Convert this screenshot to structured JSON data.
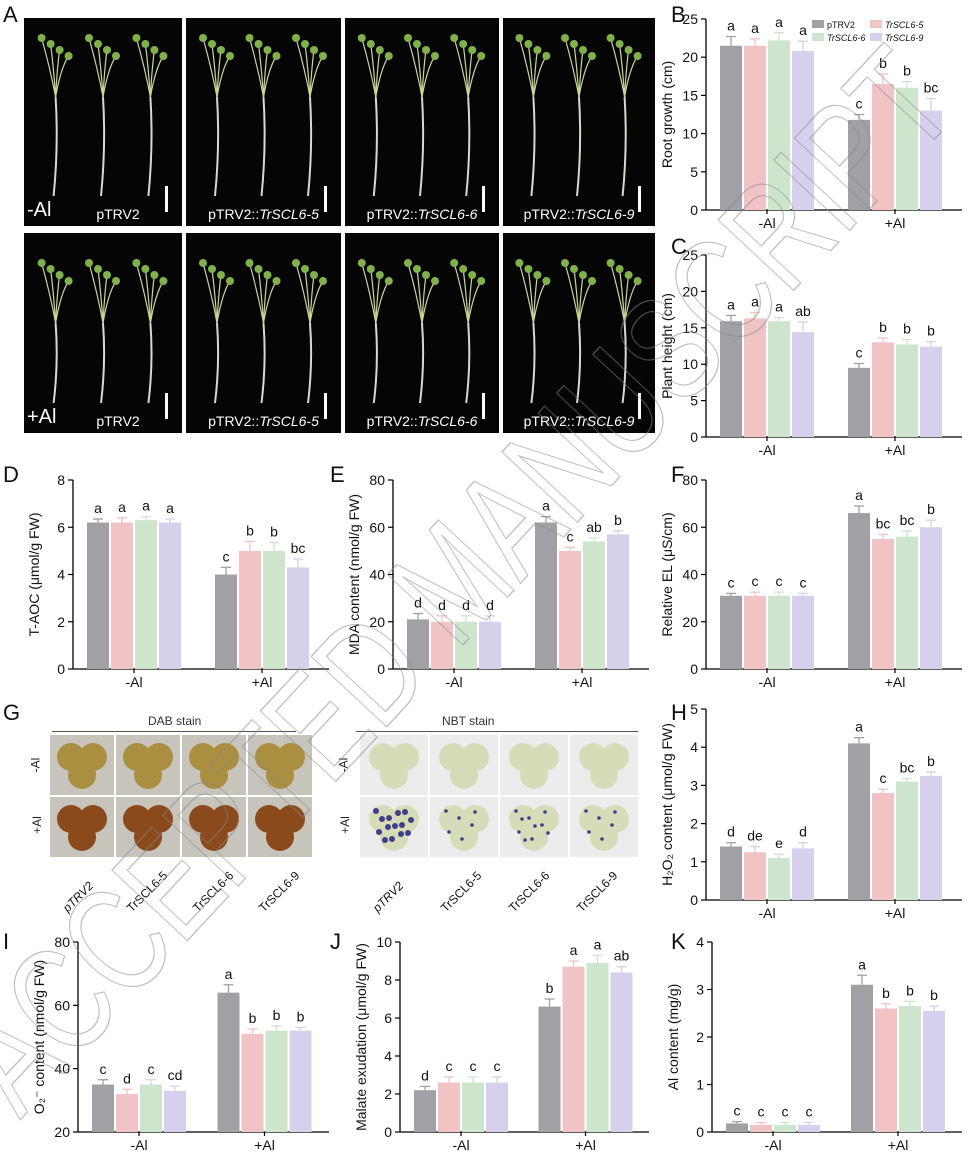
{
  "panel_letters": {
    "A": "A",
    "B": "B",
    "C": "C",
    "D": "D",
    "E": "E",
    "F": "F",
    "G": "G",
    "H": "H",
    "I": "I",
    "J": "J",
    "K": "K"
  },
  "photos": {
    "row1_condition": "-Al",
    "row2_condition": "+Al",
    "captions": [
      "pTRV2",
      "pTRV2::",
      "pTRV2::",
      "pTRV2::"
    ],
    "caption_genes": [
      "",
      "TrSCL6-5",
      "TrSCL6-6",
      "TrSCL6-9"
    ]
  },
  "stain": {
    "dab_title": "DAB stain",
    "nbt_title": "NBT stain",
    "minus": "-Al",
    "plus": "+Al",
    "genotypes": [
      "pTRV2",
      "TrSCL6-5",
      "TrSCL6-6",
      "TrSCL6-9"
    ]
  },
  "watermark": "ACCEPTED MANUSCRIPT",
  "colors": {
    "pTRV2": "#a0a0a5",
    "TrSCL6-5": "#f2c3c4",
    "TrSCL6-6": "#cde4cd",
    "TrSCL6-9": "#d6d0ec",
    "dab_leaf": "#a88c3a",
    "nbt_leaf": "#d7dcb8",
    "nbt_spot": "#3e3f86"
  },
  "chart_data": [
    {
      "id": "B",
      "type": "bar",
      "ylabel": "Root growth (cm)",
      "ylim": [
        0,
        25
      ],
      "yticks": [
        0,
        5,
        10,
        15,
        20,
        25
      ],
      "categories": [
        "-Al",
        "+Al"
      ],
      "legend": [
        "pTRV2",
        "TrSCL6-5",
        "TrSCL6-6",
        "TrSCL6-9"
      ],
      "series": [
        {
          "name": "pTRV2",
          "values": [
            21.5,
            11.8
          ],
          "errors": [
            1.2,
            0.7
          ],
          "letters": [
            "a",
            "c"
          ]
        },
        {
          "name": "TrSCL6-5",
          "values": [
            21.5,
            16.5
          ],
          "errors": [
            0.9,
            1.3
          ],
          "letters": [
            "a",
            "b"
          ]
        },
        {
          "name": "TrSCL6-6",
          "values": [
            22.2,
            16.0
          ],
          "errors": [
            1.0,
            0.8
          ],
          "letters": [
            "a",
            "b"
          ]
        },
        {
          "name": "TrSCL6-9",
          "values": [
            20.8,
            13.0
          ],
          "errors": [
            1.3,
            1.6
          ],
          "letters": [
            "a",
            "bc"
          ]
        }
      ]
    },
    {
      "id": "C",
      "type": "bar",
      "ylabel": "Plant height (cm)",
      "ylim": [
        0,
        25
      ],
      "yticks": [
        0,
        5,
        10,
        15,
        20,
        25
      ],
      "categories": [
        "-Al",
        "+Al"
      ],
      "series": [
        {
          "name": "pTRV2",
          "values": [
            15.9,
            9.5
          ],
          "errors": [
            0.8,
            0.6
          ],
          "letters": [
            "a",
            "c"
          ]
        },
        {
          "name": "TrSCL6-5",
          "values": [
            16.3,
            13.0
          ],
          "errors": [
            0.8,
            0.6
          ],
          "letters": [
            "a",
            "b"
          ]
        },
        {
          "name": "TrSCL6-6",
          "values": [
            15.9,
            12.7
          ],
          "errors": [
            0.5,
            0.7
          ],
          "letters": [
            "a",
            "b"
          ]
        },
        {
          "name": "TrSCL6-9",
          "values": [
            14.4,
            12.4
          ],
          "errors": [
            1.4,
            0.7
          ],
          "letters": [
            "ab",
            "b"
          ]
        }
      ]
    },
    {
      "id": "D",
      "type": "bar",
      "ylabel": "T-AOC (μmol/g FW)",
      "ylim": [
        0,
        8
      ],
      "yticks": [
        0,
        2,
        4,
        6,
        8
      ],
      "categories": [
        "-Al",
        "+Al"
      ],
      "series": [
        {
          "name": "pTRV2",
          "values": [
            6.2,
            4.0
          ],
          "errors": [
            0.15,
            0.3
          ],
          "letters": [
            "a",
            "c"
          ]
        },
        {
          "name": "TrSCL6-5",
          "values": [
            6.2,
            5.0
          ],
          "errors": [
            0.2,
            0.4
          ],
          "letters": [
            "a",
            "b"
          ]
        },
        {
          "name": "TrSCL6-6",
          "values": [
            6.3,
            5.0
          ],
          "errors": [
            0.15,
            0.35
          ],
          "letters": [
            "a",
            "b"
          ]
        },
        {
          "name": "TrSCL6-9",
          "values": [
            6.2,
            4.3
          ],
          "errors": [
            0.15,
            0.35
          ],
          "letters": [
            "a",
            "bc"
          ]
        }
      ]
    },
    {
      "id": "E",
      "type": "bar",
      "ylabel": "MDA content (nmol/g FW)",
      "ylim": [
        0,
        80
      ],
      "yticks": [
        0,
        20,
        40,
        60,
        80
      ],
      "categories": [
        "-Al",
        "+Al"
      ],
      "series": [
        {
          "name": "pTRV2",
          "values": [
            21,
            62
          ],
          "errors": [
            2.5,
            2.5
          ],
          "letters": [
            "d",
            "a"
          ]
        },
        {
          "name": "TrSCL6-5",
          "values": [
            20,
            50
          ],
          "errors": [
            2.5,
            1.5
          ],
          "letters": [
            "d",
            "c"
          ]
        },
        {
          "name": "TrSCL6-6",
          "values": [
            20,
            54
          ],
          "errors": [
            2.5,
            1.5
          ],
          "letters": [
            "d",
            "ab"
          ]
        },
        {
          "name": "TrSCL6-9",
          "values": [
            20,
            57
          ],
          "errors": [
            2.5,
            1.5
          ],
          "letters": [
            "d",
            "b"
          ]
        }
      ]
    },
    {
      "id": "F",
      "type": "bar",
      "ylabel": "Relative EL (μS/cm)",
      "ylim": [
        0,
        80
      ],
      "yticks": [
        0,
        20,
        40,
        60,
        80
      ],
      "categories": [
        "-Al",
        "+Al"
      ],
      "series": [
        {
          "name": "pTRV2",
          "values": [
            31,
            66
          ],
          "errors": [
            1,
            3
          ],
          "letters": [
            "c",
            "a"
          ]
        },
        {
          "name": "TrSCL6-5",
          "values": [
            31,
            55
          ],
          "errors": [
            1.5,
            2
          ],
          "letters": [
            "c",
            "bc"
          ]
        },
        {
          "name": "TrSCL6-6",
          "values": [
            31,
            56
          ],
          "errors": [
            1.5,
            2.5
          ],
          "letters": [
            "c",
            "bc"
          ]
        },
        {
          "name": "TrSCL6-9",
          "values": [
            31,
            60
          ],
          "errors": [
            1,
            3
          ],
          "letters": [
            "c",
            "b"
          ]
        }
      ]
    },
    {
      "id": "H",
      "type": "bar",
      "ylabel": "H₂O₂ content (μmol/g FW)",
      "ylim": [
        0,
        5
      ],
      "yticks": [
        0,
        1,
        2,
        3,
        4,
        5
      ],
      "categories": [
        "-Al",
        "+Al"
      ],
      "series": [
        {
          "name": "pTRV2",
          "values": [
            1.4,
            4.1
          ],
          "errors": [
            0.1,
            0.15
          ],
          "letters": [
            "d",
            "a"
          ]
        },
        {
          "name": "TrSCL6-5",
          "values": [
            1.25,
            2.8
          ],
          "errors": [
            0.15,
            0.1
          ],
          "letters": [
            "de",
            "c"
          ]
        },
        {
          "name": "TrSCL6-6",
          "values": [
            1.1,
            3.1
          ],
          "errors": [
            0.1,
            0.08
          ],
          "letters": [
            "e",
            "bc"
          ]
        },
        {
          "name": "TrSCL6-9",
          "values": [
            1.35,
            3.25
          ],
          "errors": [
            0.15,
            0.1
          ],
          "letters": [
            "d",
            "b"
          ]
        }
      ]
    },
    {
      "id": "I",
      "type": "bar",
      "ylabel": "O₂⁻ content (nmol/g FW)",
      "ylim": [
        20,
        80
      ],
      "yticks": [
        20,
        40,
        60,
        80
      ],
      "categories": [
        "-Al",
        "+Al"
      ],
      "series": [
        {
          "name": "pTRV2",
          "values": [
            35,
            64
          ],
          "errors": [
            1.5,
            2.5
          ],
          "letters": [
            "c",
            "a"
          ]
        },
        {
          "name": "TrSCL6-5",
          "values": [
            32,
            51
          ],
          "errors": [
            1.5,
            1.5
          ],
          "letters": [
            "d",
            "b"
          ]
        },
        {
          "name": "TrSCL6-6",
          "values": [
            35,
            52
          ],
          "errors": [
            1.5,
            1.5
          ],
          "letters": [
            "c",
            "b"
          ]
        },
        {
          "name": "TrSCL6-9",
          "values": [
            33,
            52
          ],
          "errors": [
            1.5,
            1
          ],
          "letters": [
            "cd",
            "b"
          ]
        }
      ]
    },
    {
      "id": "J",
      "type": "bar",
      "ylabel": "Malate exudation (μmol/g FW)",
      "ylim": [
        0,
        10
      ],
      "yticks": [
        0,
        2,
        4,
        6,
        8,
        10
      ],
      "categories": [
        "-Al",
        "+Al"
      ],
      "series": [
        {
          "name": "pTRV2",
          "values": [
            2.2,
            6.6
          ],
          "errors": [
            0.2,
            0.4
          ],
          "letters": [
            "d",
            "b"
          ]
        },
        {
          "name": "TrSCL6-5",
          "values": [
            2.6,
            8.7
          ],
          "errors": [
            0.3,
            0.3
          ],
          "letters": [
            "c",
            "a"
          ]
        },
        {
          "name": "TrSCL6-6",
          "values": [
            2.6,
            8.9
          ],
          "errors": [
            0.3,
            0.4
          ],
          "letters": [
            "c",
            "a"
          ]
        },
        {
          "name": "TrSCL6-9",
          "values": [
            2.6,
            8.4
          ],
          "errors": [
            0.3,
            0.3
          ],
          "letters": [
            "c",
            "ab"
          ]
        }
      ]
    },
    {
      "id": "K",
      "type": "bar",
      "ylabel": "Al content (mg/g)",
      "ylim": [
        0,
        4
      ],
      "yticks": [
        0,
        1,
        2,
        3,
        4
      ],
      "categories": [
        "-Al",
        "+Al"
      ],
      "series": [
        {
          "name": "pTRV2",
          "values": [
            0.18,
            3.1
          ],
          "errors": [
            0.04,
            0.2
          ],
          "letters": [
            "c",
            "a"
          ]
        },
        {
          "name": "TrSCL6-5",
          "values": [
            0.15,
            2.6
          ],
          "errors": [
            0.05,
            0.1
          ],
          "letters": [
            "c",
            "b"
          ]
        },
        {
          "name": "TrSCL6-6",
          "values": [
            0.15,
            2.65
          ],
          "errors": [
            0.05,
            0.1
          ],
          "letters": [
            "c",
            "b"
          ]
        },
        {
          "name": "TrSCL6-9",
          "values": [
            0.15,
            2.55
          ],
          "errors": [
            0.05,
            0.1
          ],
          "letters": [
            "c",
            "b"
          ]
        }
      ]
    }
  ]
}
